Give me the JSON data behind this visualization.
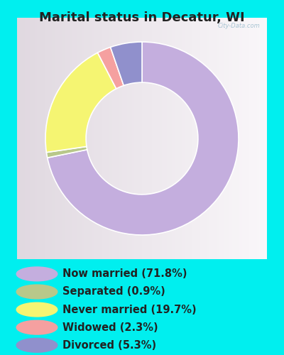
{
  "title": "Marital status in Decatur, WI",
  "title_fontsize": 13,
  "background_outer": "#00EFEF",
  "background_chart": "#dff0e8",
  "slices": [
    71.8,
    0.9,
    19.7,
    2.3,
    5.3
  ],
  "colors": [
    "#c4aede",
    "#b8c88a",
    "#f5f572",
    "#f5a0a0",
    "#9090cc"
  ],
  "labels": [
    "Now married (71.8%)",
    "Separated (0.9%)",
    "Never married (19.7%)",
    "Widowed (2.3%)",
    "Divorced (5.3%)"
  ],
  "legend_colors": [
    "#c4aede",
    "#b8c88a",
    "#f5f572",
    "#f5a0a0",
    "#9090cc"
  ],
  "start_angle": 90,
  "text_color": "#222222",
  "legend_fontsize": 10.5
}
